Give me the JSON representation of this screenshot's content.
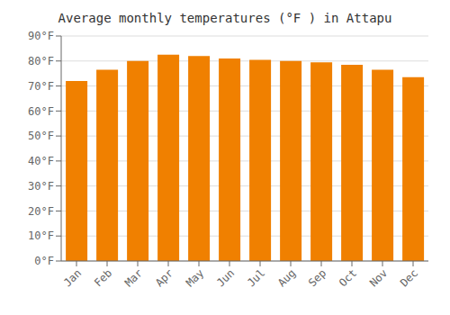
{
  "chart_data": {
    "type": "bar",
    "title": "Average monthly temperatures (°F ) in Attapu",
    "categories": [
      "Jan",
      "Feb",
      "Mar",
      "Apr",
      "May",
      "Jun",
      "Jul",
      "Aug",
      "Sep",
      "Oct",
      "Nov",
      "Dec"
    ],
    "values": [
      72,
      76.5,
      80,
      82.5,
      82,
      81,
      80.5,
      80,
      79.5,
      78.5,
      76.5,
      73.5
    ],
    "color": "#F08000",
    "ylim": [
      0,
      90
    ],
    "yticks": [
      {
        "value": 0,
        "label": "0°F"
      },
      {
        "value": 10,
        "label": "10°F"
      },
      {
        "value": 20,
        "label": "20°F"
      },
      {
        "value": 30,
        "label": "30°F"
      },
      {
        "value": 40,
        "label": "40°F"
      },
      {
        "value": 50,
        "label": "50°F"
      },
      {
        "value": 60,
        "label": "60°F"
      },
      {
        "value": 70,
        "label": "70°F"
      },
      {
        "value": 80,
        "label": "80°F"
      },
      {
        "value": 90,
        "label": "90°F"
      }
    ],
    "grid": true
  }
}
